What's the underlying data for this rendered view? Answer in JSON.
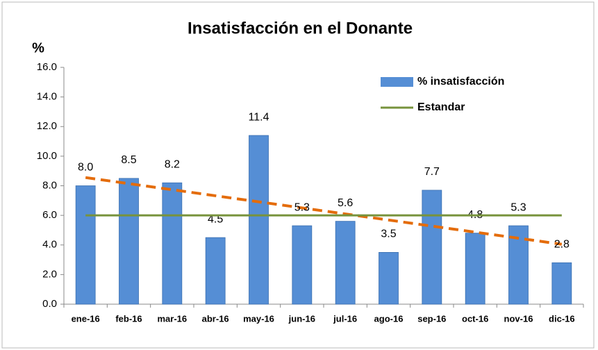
{
  "chart_data": {
    "type": "bar",
    "title": "Insatisfacción  en el Donante",
    "y_label": "%",
    "categories": [
      "ene-16",
      "feb-16",
      "mar-16",
      "abr-16",
      "may-16",
      "jun-16",
      "jul-16",
      "ago-16",
      "sep-16",
      "oct-16",
      "nov-16",
      "dic-16"
    ],
    "series": [
      {
        "name": "% insatisfacción",
        "type": "bar",
        "color": "#558ed5",
        "values": [
          8.0,
          8.5,
          8.2,
          4.5,
          11.4,
          5.3,
          5.6,
          3.5,
          7.7,
          4.8,
          5.3,
          2.8
        ],
        "value_labels": [
          "8.0",
          "8.5",
          "8.2",
          "4.5",
          "11.4",
          "5.3",
          "5.6",
          "3.5",
          "7.7",
          "4.8",
          "5.3",
          "2.8"
        ],
        "trendline": {
          "kind": "linear",
          "color": "#e46c0a"
        }
      },
      {
        "name": "Estandar",
        "type": "line",
        "color": "#77933c",
        "values": [
          6,
          6,
          6,
          6,
          6,
          6,
          6,
          6,
          6,
          6,
          6,
          6
        ]
      }
    ],
    "ylim": [
      0,
      16
    ],
    "yticks": [
      {
        "value": 0,
        "label": "0.0"
      },
      {
        "value": 2,
        "label": "2.0"
      },
      {
        "value": 4,
        "label": "4.0"
      },
      {
        "value": 6,
        "label": "6.0"
      },
      {
        "value": 8,
        "label": "8.0"
      },
      {
        "value": 10,
        "label": "10.0"
      },
      {
        "value": 12,
        "label": "12.0"
      },
      {
        "value": 14,
        "label": "14.0"
      },
      {
        "value": 16,
        "label": "16.0"
      }
    ],
    "legend": "upper right"
  }
}
